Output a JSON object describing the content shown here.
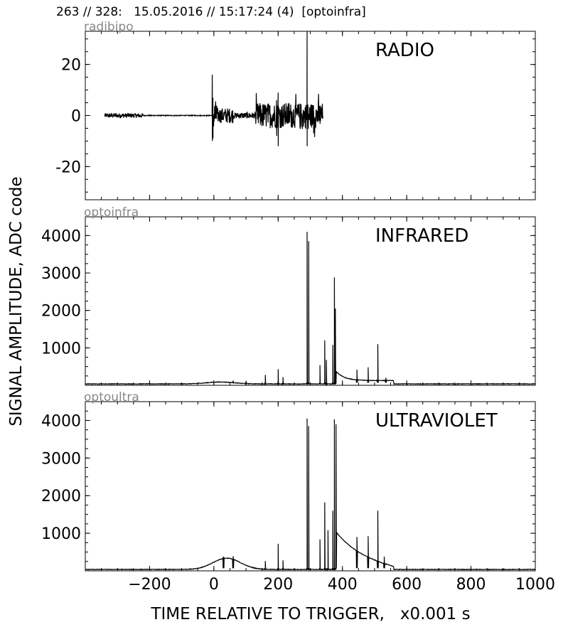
{
  "header": {
    "text": "263 // 328:   15.05.2016 // 15:17:24 (4)  [optoinfra]"
  },
  "axes": {
    "ylabel": "SIGNAL AMPLITUDE,  ADC code",
    "xlabel": "TIME RELATIVE TO TRIGGER,   x0.001 s",
    "xlim": [
      -400,
      1000
    ],
    "xticks": [
      -200,
      0,
      200,
      400,
      600,
      800,
      1000
    ],
    "xtick_labels": [
      "−200",
      "0",
      "200",
      "400",
      "600",
      "800",
      "1000"
    ]
  },
  "chart_data": [
    {
      "type": "line",
      "channel": "radibipo",
      "label": "RADIO",
      "ylim": [
        -33,
        33
      ],
      "yticks": [
        20,
        0,
        -20
      ],
      "ytick_labels": [
        "20",
        "0",
        "-20"
      ],
      "color": "#000000",
      "x_range": [
        -340,
        340
      ],
      "features": [
        {
          "x": -340,
          "to": -220,
          "noise": 1
        },
        {
          "x": -5,
          "ymax": 16,
          "ymin": -10
        },
        {
          "x": 0,
          "to": 130,
          "noise": 3
        },
        {
          "x": 120,
          "to": 340,
          "noise": 5
        },
        {
          "x": 200,
          "ymax": 9,
          "ymin": -12
        },
        {
          "x": 290,
          "ymax": 33,
          "ymin": -12
        }
      ]
    },
    {
      "type": "line",
      "channel": "optoinfra",
      "label": "INFRARED",
      "ylim": [
        0,
        4500
      ],
      "yticks": [
        4000,
        3000,
        2000,
        1000
      ],
      "ytick_labels": [
        "4000",
        "3000",
        "2000",
        "1000"
      ],
      "color": "#000000",
      "baseline": 30,
      "peaks": [
        {
          "x": 60,
          "y": 130
        },
        {
          "x": 100,
          "y": 120
        },
        {
          "x": 160,
          "y": 280
        },
        {
          "x": 200,
          "y": 430
        },
        {
          "x": 215,
          "y": 220
        },
        {
          "x": 290,
          "y": 4100
        },
        {
          "x": 295,
          "y": 3850
        },
        {
          "x": 330,
          "y": 540
        },
        {
          "x": 345,
          "y": 1200
        },
        {
          "x": 350,
          "y": 680
        },
        {
          "x": 370,
          "y": 1080
        },
        {
          "x": 375,
          "y": 2880
        },
        {
          "x": 378,
          "y": 2050
        },
        {
          "x": 445,
          "y": 420
        },
        {
          "x": 480,
          "y": 480
        },
        {
          "x": 510,
          "y": 1100
        },
        {
          "x": 535,
          "y": 200
        }
      ]
    },
    {
      "type": "line",
      "channel": "optoultra",
      "label": "ULTRAVIOLET",
      "ylim": [
        0,
        4500
      ],
      "yticks": [
        4000,
        3000,
        2000,
        1000
      ],
      "ytick_labels": [
        "4000",
        "3000",
        "2000",
        "1000"
      ],
      "color": "#000000",
      "baseline": 30,
      "peaks": [
        {
          "x": 30,
          "y": 380
        },
        {
          "x": 60,
          "y": 390
        },
        {
          "x": 160,
          "y": 260
        },
        {
          "x": 200,
          "y": 720
        },
        {
          "x": 215,
          "y": 280
        },
        {
          "x": 290,
          "y": 4050
        },
        {
          "x": 295,
          "y": 3850
        },
        {
          "x": 330,
          "y": 840
        },
        {
          "x": 345,
          "y": 1820
        },
        {
          "x": 355,
          "y": 1080
        },
        {
          "x": 370,
          "y": 1600
        },
        {
          "x": 375,
          "y": 4030
        },
        {
          "x": 380,
          "y": 3900
        },
        {
          "x": 445,
          "y": 900
        },
        {
          "x": 480,
          "y": 920
        },
        {
          "x": 510,
          "y": 1600
        },
        {
          "x": 530,
          "y": 380
        }
      ]
    }
  ]
}
